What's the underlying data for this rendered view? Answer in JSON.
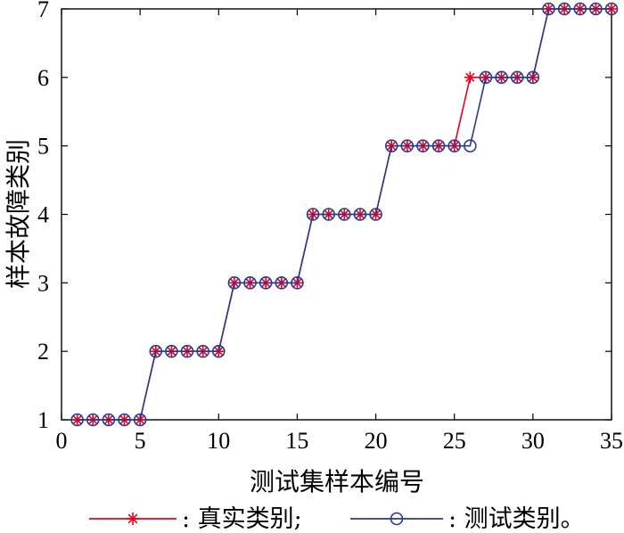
{
  "chart_data": {
    "type": "line",
    "xlabel": "测试集样本编号",
    "ylabel": "样本故障类别",
    "xlim": [
      0,
      35
    ],
    "ylim": [
      1,
      7
    ],
    "xticks": [
      0,
      5,
      10,
      15,
      20,
      25,
      30,
      35
    ],
    "yticks": [
      1,
      2,
      3,
      4,
      5,
      6,
      7
    ],
    "grid": false,
    "legend_position": "bottom",
    "x": [
      1,
      2,
      3,
      4,
      5,
      6,
      7,
      8,
      9,
      10,
      11,
      12,
      13,
      14,
      15,
      16,
      17,
      18,
      19,
      20,
      21,
      22,
      23,
      24,
      25,
      26,
      27,
      28,
      29,
      30,
      31,
      32,
      33,
      34,
      35
    ],
    "series": [
      {
        "name": "真实类别",
        "legend_label": ": 真实类别;",
        "color": "#e8001c",
        "marker": "asterisk",
        "values": [
          1,
          1,
          1,
          1,
          1,
          2,
          2,
          2,
          2,
          2,
          3,
          3,
          3,
          3,
          3,
          4,
          4,
          4,
          4,
          4,
          5,
          5,
          5,
          5,
          5,
          6,
          6,
          6,
          6,
          6,
          7,
          7,
          7,
          7,
          7
        ]
      },
      {
        "name": "测试类别",
        "legend_label": ": 测试类别。",
        "color": "#2b3990",
        "marker": "circle",
        "values": [
          1,
          1,
          1,
          1,
          1,
          2,
          2,
          2,
          2,
          2,
          3,
          3,
          3,
          3,
          3,
          4,
          4,
          4,
          4,
          4,
          5,
          5,
          5,
          5,
          5,
          5,
          6,
          6,
          6,
          6,
          7,
          7,
          7,
          7,
          7
        ]
      }
    ]
  }
}
